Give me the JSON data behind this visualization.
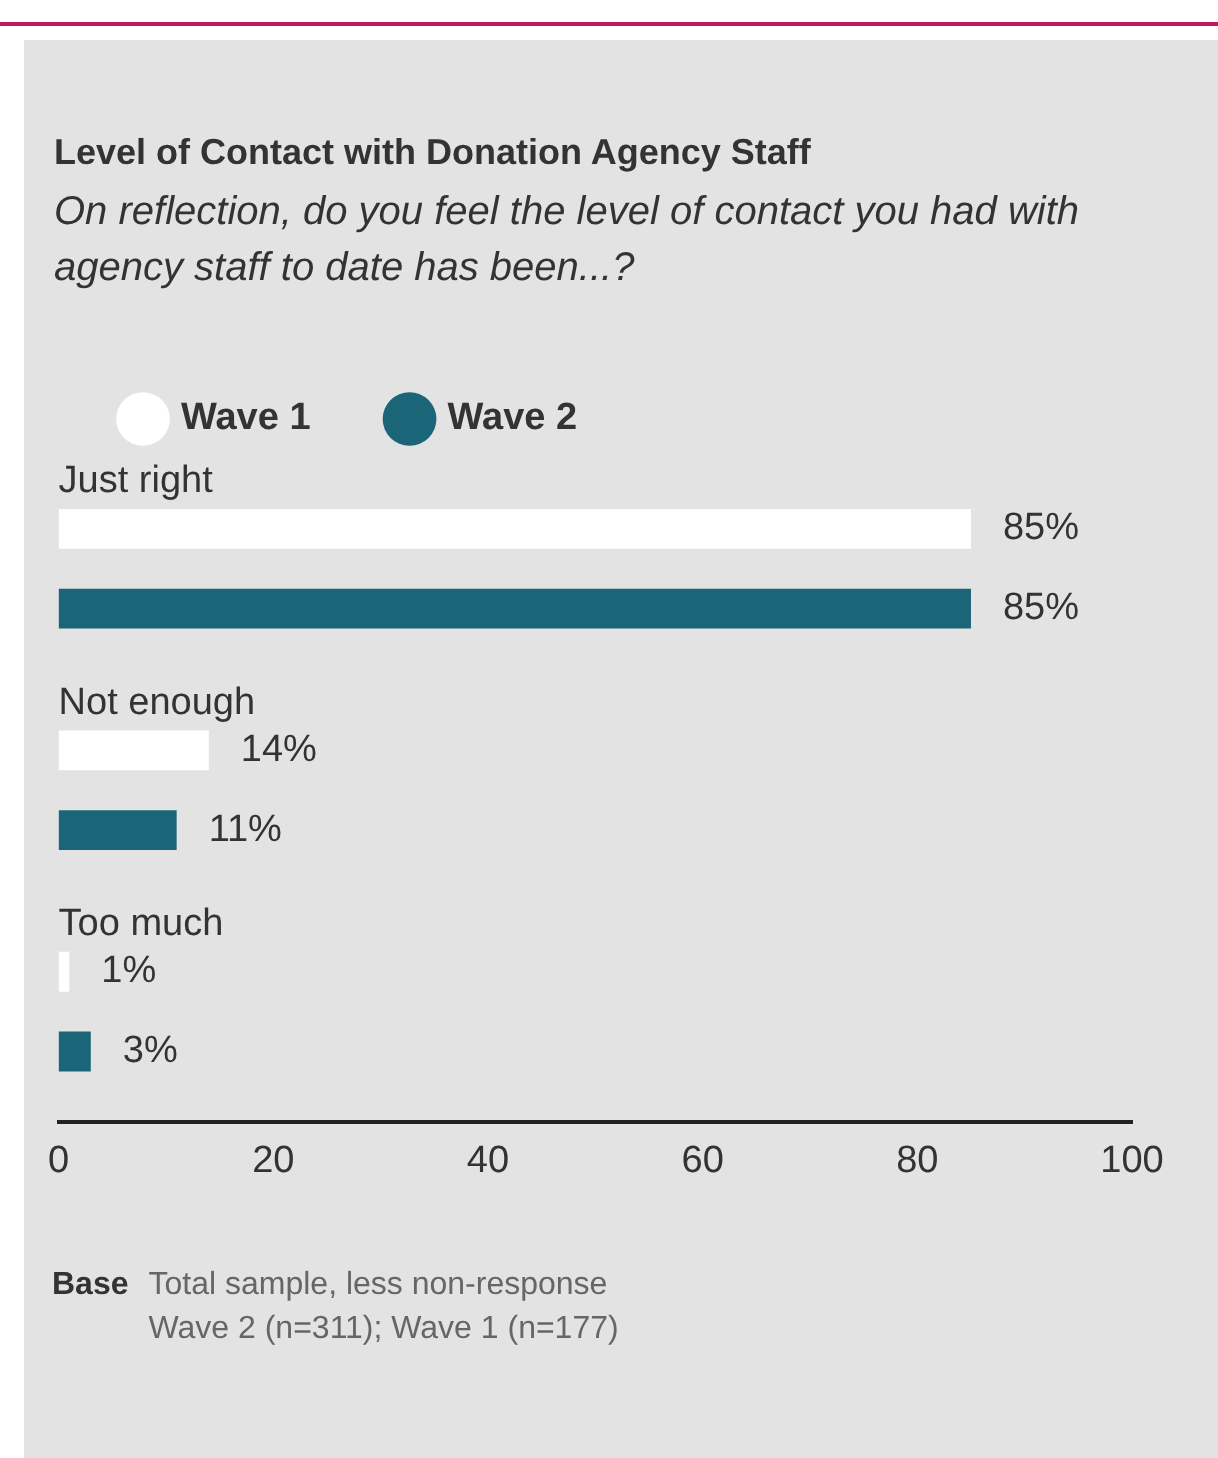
{
  "chart_data": {
    "type": "bar",
    "orientation": "horizontal",
    "title": "Level of Contact with Donation Agency Staff",
    "subtitle": "On reflection, do you feel the level of contact you had with agency staff to date has been...?",
    "categories": [
      "Just right",
      "Not enough",
      "Too much"
    ],
    "series": [
      {
        "name": "Wave 1",
        "color": "#ffffff",
        "values": [
          85,
          14,
          1
        ],
        "value_labels": [
          "85%",
          "14%",
          "1%"
        ]
      },
      {
        "name": "Wave 2",
        "color": "#1a6678",
        "values": [
          85,
          11,
          3
        ],
        "value_labels": [
          "85%",
          "11%",
          "3%"
        ]
      }
    ],
    "xlim": [
      0,
      100
    ],
    "xticks": [
      0,
      20,
      40,
      60,
      80,
      100
    ],
    "grid": false,
    "legend": "top left",
    "annotations": [
      "Base",
      "Total sample, less non-response\nWave 2 (n=311); Wave 1 (n=177)"
    ]
  }
}
